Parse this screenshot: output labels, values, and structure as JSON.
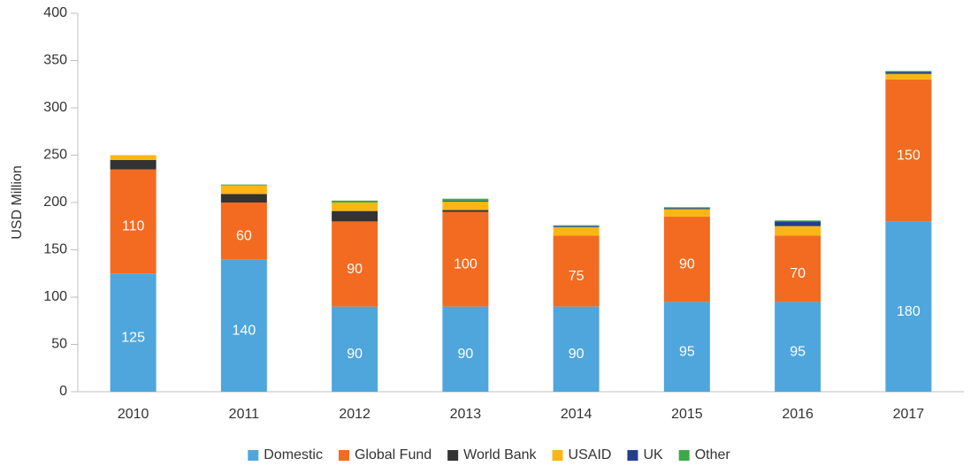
{
  "chart_data": {
    "type": "stacked_bar",
    "y_label": "USD Million",
    "categories": [
      "2010",
      "2011",
      "2012",
      "2013",
      "2014",
      "2015",
      "2016",
      "2017"
    ],
    "series": [
      {
        "name": "Domestic",
        "color": "#4ea6dc",
        "values": [
          125,
          140,
          90,
          90,
          90,
          95,
          95,
          180
        ]
      },
      {
        "name": "Global Fund",
        "color": "#f26b21",
        "values": [
          110,
          60,
          90,
          100,
          75,
          90,
          70,
          150
        ]
      },
      {
        "name": "World Bank",
        "color": "#333333",
        "values": [
          10,
          9,
          11,
          2,
          0,
          0,
          0,
          0
        ]
      },
      {
        "name": "USAID",
        "color": "#fbb614",
        "values": [
          5,
          9,
          9,
          9,
          9,
          8,
          10,
          6
        ]
      },
      {
        "name": "UK",
        "color": "#243e8f",
        "values": [
          0,
          0,
          0,
          1,
          1,
          1,
          5,
          2
        ]
      },
      {
        "name": "Other",
        "color": "#3aaa49",
        "values": [
          0,
          1,
          2,
          2,
          1,
          1,
          1,
          1
        ]
      }
    ],
    "ylim": [
      0,
      400
    ],
    "yticks": [
      0,
      50,
      100,
      150,
      200,
      250,
      300,
      350,
      400
    ],
    "legend": "bottom"
  }
}
